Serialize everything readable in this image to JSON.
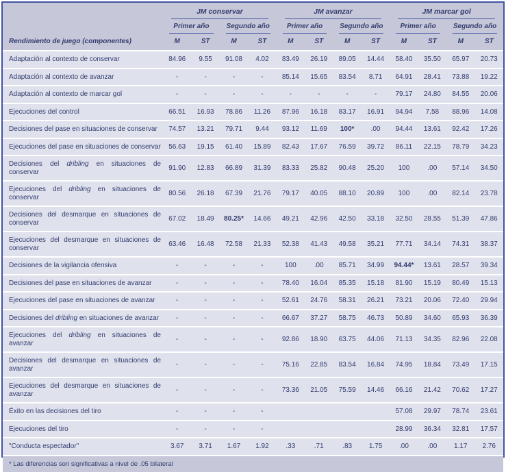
{
  "table": {
    "row_header": "Rendimiento de juego (componentes)",
    "groups": [
      {
        "label": "JM conservar"
      },
      {
        "label": "JM avanzar"
      },
      {
        "label": "JM marcar gol"
      }
    ],
    "year_labels": [
      "Primer año",
      "Segundo año"
    ],
    "stat_labels": [
      "M",
      "ST"
    ],
    "footnote": "* Las diferencias son significativas a nivel de .05 bilateral",
    "colors": {
      "accent_border": "#4253a2",
      "header_bg": "#c6c8da",
      "row_bg": "#dfe1ed",
      "text": "#333c6d",
      "separator": "#ffffff"
    },
    "rows": [
      {
        "label_segments": [
          {
            "text": "Adaptación al contexto de conservar",
            "italic": false
          }
        ],
        "values": [
          "84.96",
          "9.55",
          "91.08",
          "4.02",
          "83.49",
          "26.19",
          "89.05",
          "14.44",
          "58.40",
          "35.50",
          "65.97",
          "20.73"
        ],
        "bold_cols": []
      },
      {
        "label_segments": [
          {
            "text": "Adaptación al contexto de avanzar",
            "italic": false
          }
        ],
        "values": [
          "-",
          "-",
          "-",
          "-",
          "85.14",
          "15.65",
          "83.54",
          "8.71",
          "64.91",
          "28.41",
          "73.88",
          "19.22"
        ],
        "bold_cols": []
      },
      {
        "label_segments": [
          {
            "text": "Adaptación al contexto de marcar gol",
            "italic": false
          }
        ],
        "values": [
          "-",
          "-",
          "-",
          "-",
          "-",
          "-",
          "-",
          "-",
          "79.17",
          "24.80",
          "84.55",
          "20.06"
        ],
        "bold_cols": []
      },
      {
        "label_segments": [
          {
            "text": "Ejecuciones del control",
            "italic": false
          }
        ],
        "values": [
          "66.51",
          "16.93",
          "78.86",
          "11.26",
          "87.96",
          "16.18",
          "83.17",
          "16.91",
          "94.94",
          "7.58",
          "88.96",
          "14.08"
        ],
        "bold_cols": []
      },
      {
        "label_segments": [
          {
            "text": "Decisiones del pase en situaciones de conservar",
            "italic": false
          }
        ],
        "values": [
          "74.57",
          "13.21",
          "79.71",
          "9.44",
          "93.12",
          "11.69",
          "100*",
          ".00",
          "94.44",
          "13.61",
          "92.42",
          "17.26"
        ],
        "bold_cols": [
          6
        ]
      },
      {
        "label_segments": [
          {
            "text": "Ejecuciones del pase en situaciones de conservar",
            "italic": false
          }
        ],
        "values": [
          "56.63",
          "19.15",
          "61.40",
          "15.89",
          "82.43",
          "17.67",
          "76.59",
          "39.72",
          "86.11",
          "22.15",
          "78.79",
          "34.23"
        ],
        "bold_cols": []
      },
      {
        "label_segments": [
          {
            "text": "Decisiones del ",
            "italic": false
          },
          {
            "text": "dribling",
            "italic": true
          },
          {
            "text": " en situaciones de conservar",
            "italic": false
          }
        ],
        "values": [
          "91.90",
          "12.83",
          "66.89",
          "31.39",
          "83.33",
          "25.82",
          "90.48",
          "25.20",
          "100",
          ".00",
          "57.14",
          "34.50"
        ],
        "bold_cols": []
      },
      {
        "label_segments": [
          {
            "text": "Ejecuciones del ",
            "italic": false
          },
          {
            "text": "dribling",
            "italic": true
          },
          {
            "text": " en situaciones de conservar",
            "italic": false
          }
        ],
        "values": [
          "80.56",
          "26.18",
          "67.39",
          "21.76",
          "79.17",
          "40.05",
          "88.10",
          "20.89",
          "100",
          ".00",
          "82.14",
          "23.78"
        ],
        "bold_cols": []
      },
      {
        "label_segments": [
          {
            "text": "Decisiones del desmarque en situaciones de conservar",
            "italic": false
          }
        ],
        "values": [
          "67.02",
          "18.49",
          "80.25*",
          "14.66",
          "49.21",
          "42.96",
          "42.50",
          "33.18",
          "32.50",
          "28.55",
          "51.39",
          "47.86"
        ],
        "bold_cols": [
          2
        ]
      },
      {
        "label_segments": [
          {
            "text": "Ejecuciones del desmarque en situaciones de conservar",
            "italic": false
          }
        ],
        "values": [
          "63.46",
          "16.48",
          "72.58",
          "21.33",
          "52.38",
          "41.43",
          "49.58",
          "35.21",
          "77.71",
          "34.14",
          "74.31",
          "38.37"
        ],
        "bold_cols": []
      },
      {
        "label_segments": [
          {
            "text": "Decisiones de la vigilancia ofensiva",
            "italic": false
          }
        ],
        "values": [
          "-",
          "-",
          "-",
          "-",
          "100",
          ".00",
          "85.71",
          "34.99",
          "94.44*",
          "13.61",
          "28.57",
          "39.34"
        ],
        "bold_cols": [
          8
        ]
      },
      {
        "label_segments": [
          {
            "text": "Decisiones del pase en situaciones de avanzar",
            "italic": false
          }
        ],
        "values": [
          "-",
          "-",
          "-",
          "-",
          "78.40",
          "16.04",
          "85.35",
          "15.18",
          "81.90",
          "15.19",
          "80.49",
          "15.13"
        ],
        "bold_cols": []
      },
      {
        "label_segments": [
          {
            "text": "Ejecuciones del pase en situaciones de avanzar",
            "italic": false
          }
        ],
        "values": [
          "-",
          "-",
          "-",
          "-",
          "52.61",
          "24.76",
          "58.31",
          "26.21",
          "73.21",
          "20.06",
          "72.40",
          "29.94"
        ],
        "bold_cols": []
      },
      {
        "label_segments": [
          {
            "text": "Decisiones del ",
            "italic": false
          },
          {
            "text": "dribling",
            "italic": true
          },
          {
            "text": " en situaciones de avanzar",
            "italic": false
          }
        ],
        "values": [
          "-",
          "-",
          "-",
          "-",
          "66.67",
          "37.27",
          "58.75",
          "46.73",
          "50.89",
          "34.60",
          "65.93",
          "36.39"
        ],
        "bold_cols": []
      },
      {
        "label_segments": [
          {
            "text": "Ejecuciones del ",
            "italic": false
          },
          {
            "text": "dribling",
            "italic": true
          },
          {
            "text": " en situaciones de avanzar",
            "italic": false
          }
        ],
        "values": [
          "-",
          "-",
          "-",
          "-",
          "92.86",
          "18.90",
          "63.75",
          "44.06",
          "71.13",
          "34.35",
          "82.96",
          "22.08"
        ],
        "bold_cols": []
      },
      {
        "label_segments": [
          {
            "text": "Decisiones del desmarque en situaciones de avanzar",
            "italic": false
          }
        ],
        "values": [
          "-",
          "-",
          "-",
          "-",
          "75.16",
          "22.85",
          "83.54",
          "16.84",
          "74.95",
          "18.84",
          "73.49",
          "17.15"
        ],
        "bold_cols": []
      },
      {
        "label_segments": [
          {
            "text": "Ejecuciones del desmarque en situaciones de avanzar",
            "italic": false
          }
        ],
        "values": [
          "-",
          "-",
          "-",
          "-",
          "73.36",
          "21.05",
          "75.59",
          "14.46",
          "66.16",
          "21.42",
          "70.62",
          "17.27"
        ],
        "bold_cols": []
      },
      {
        "label_segments": [
          {
            "text": "Éxito en las decisiones del tiro",
            "italic": false
          }
        ],
        "values": [
          "-",
          "-",
          "-",
          "-",
          "",
          "",
          "",
          "",
          "57.08",
          "29.97",
          "78.74",
          "23.61"
        ],
        "bold_cols": []
      },
      {
        "label_segments": [
          {
            "text": "Ejecuciones del tiro",
            "italic": false
          }
        ],
        "values": [
          "-",
          "-",
          "-",
          "-",
          "",
          "",
          "",
          "",
          "28.99",
          "36.34",
          "32.81",
          "17.57"
        ],
        "bold_cols": []
      },
      {
        "label_segments": [
          {
            "text": "\"Conducta espectador\"",
            "italic": false
          }
        ],
        "values": [
          "3.67",
          "3.71",
          "1.67",
          "1.92",
          ".33",
          ".71",
          ".83",
          "1.75",
          ".00",
          ".00",
          "1.17",
          "2.76"
        ],
        "bold_cols": []
      }
    ]
  }
}
